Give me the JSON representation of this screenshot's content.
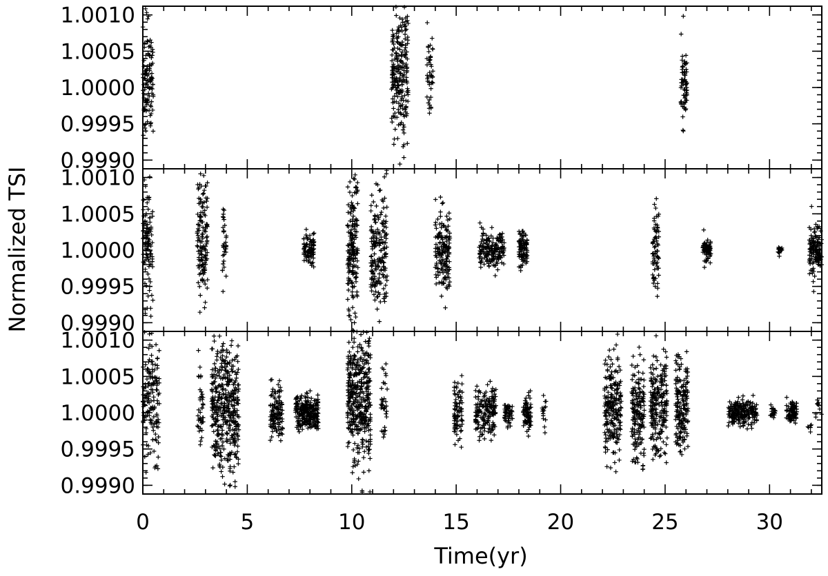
{
  "chart_data": {
    "type": "scatter",
    "marker": "plus",
    "xlabel": "Time(yr)",
    "ylabel": "Normalized TSI",
    "xlim": [
      0,
      32.5
    ],
    "ylim": [
      0.99888,
      1.00112
    ],
    "x_ticks": [
      0,
      5,
      10,
      15,
      20,
      25,
      30
    ],
    "x_tick_labels": [
      "0",
      "5",
      "10",
      "15",
      "20",
      "25",
      "30"
    ],
    "y_ticks": [
      0.999,
      0.9995,
      1.0,
      1.0005,
      1.001
    ],
    "y_tick_labels": [
      "0.9990",
      "0.9995",
      "1.0000",
      "1.0005",
      "1.0010"
    ],
    "color": "#000000",
    "panels": [
      {
        "clusters": [
          {
            "x": [
              0.0,
              0.5
            ],
            "center": 1.0001,
            "spread": 0.0009,
            "count": 110
          },
          {
            "x": [
              11.9,
              12.7
            ],
            "center": 1.0002,
            "spread": 0.0012,
            "count": 240
          },
          {
            "x": [
              13.6,
              13.9
            ],
            "center": 1.0001,
            "spread": 0.0007,
            "count": 45
          },
          {
            "x": [
              25.75,
              26.05
            ],
            "center": 1.0,
            "spread": 0.0007,
            "count": 70
          }
        ]
      },
      {
        "clusters": [
          {
            "x": [
              0.0,
              0.5
            ],
            "center": 1.0001,
            "spread": 0.0009,
            "count": 110
          },
          {
            "x": [
              2.6,
              3.1
            ],
            "center": 1.0001,
            "spread": 0.001,
            "count": 140
          },
          {
            "x": [
              3.8,
              4.0
            ],
            "center": 1.0001,
            "spread": 0.0006,
            "count": 35
          },
          {
            "x": [
              7.7,
              8.2
            ],
            "center": 1.0,
            "spread": 0.00025,
            "count": 90
          },
          {
            "x": [
              9.8,
              10.3
            ],
            "center": 1.0,
            "spread": 0.0011,
            "count": 180
          },
          {
            "x": [
              10.9,
              11.7
            ],
            "center": 1.0,
            "spread": 0.001,
            "count": 190
          },
          {
            "x": [
              14.0,
              14.7
            ],
            "center": 1.0,
            "spread": 0.0007,
            "count": 170
          },
          {
            "x": [
              16.1,
              17.3
            ],
            "center": 1.0,
            "spread": 0.0003,
            "count": 170
          },
          {
            "x": [
              18.0,
              18.4
            ],
            "center": 1.0,
            "spread": 0.0003,
            "count": 90
          },
          {
            "x": [
              24.4,
              24.7
            ],
            "center": 1.0,
            "spread": 0.0006,
            "count": 70
          },
          {
            "x": [
              26.8,
              27.2
            ],
            "center": 1.0,
            "spread": 0.0002,
            "count": 70
          },
          {
            "x": [
              30.4,
              30.6
            ],
            "center": 1.0,
            "spread": 0.0001,
            "count": 15
          },
          {
            "x": [
              31.9,
              32.5
            ],
            "center": 1.0,
            "spread": 0.0004,
            "count": 140
          }
        ]
      },
      {
        "clusters": [
          {
            "x": [
              0.0,
              0.8
            ],
            "center": 1.0001,
            "spread": 0.001,
            "count": 150
          },
          {
            "x": [
              2.6,
              2.9
            ],
            "center": 1.0001,
            "spread": 0.0007,
            "count": 40
          },
          {
            "x": [
              3.3,
              4.6
            ],
            "center": 1.0001,
            "spread": 0.0011,
            "count": 420
          },
          {
            "x": [
              6.1,
              6.7
            ],
            "center": 1.0,
            "spread": 0.0004,
            "count": 120
          },
          {
            "x": [
              7.3,
              8.4
            ],
            "center": 1.0,
            "spread": 0.00025,
            "count": 260
          },
          {
            "x": [
              9.8,
              10.9
            ],
            "center": 1.0002,
            "spread": 0.0011,
            "count": 420
          },
          {
            "x": [
              11.4,
              11.7
            ],
            "center": 1.0001,
            "spread": 0.0007,
            "count": 35
          },
          {
            "x": [
              14.9,
              15.3
            ],
            "center": 1.0,
            "spread": 0.0005,
            "count": 80
          },
          {
            "x": [
              15.9,
              16.9
            ],
            "center": 1.0,
            "spread": 0.0004,
            "count": 170
          },
          {
            "x": [
              17.3,
              17.7
            ],
            "center": 1.0,
            "spread": 0.0002,
            "count": 50
          },
          {
            "x": [
              18.2,
              18.6
            ],
            "center": 1.0,
            "spread": 0.0003,
            "count": 80
          },
          {
            "x": [
              19.1,
              19.3
            ],
            "center": 1.0,
            "spread": 0.0003,
            "count": 15
          },
          {
            "x": [
              22.1,
              22.9
            ],
            "center": 1.0001,
            "spread": 0.0008,
            "count": 220
          },
          {
            "x": [
              23.4,
              24.0
            ],
            "center": 1.0,
            "spread": 0.0008,
            "count": 170
          },
          {
            "x": [
              24.3,
              25.1
            ],
            "center": 1.0001,
            "spread": 0.0008,
            "count": 220
          },
          {
            "x": [
              25.5,
              26.1
            ],
            "center": 1.0001,
            "spread": 0.0008,
            "count": 170
          },
          {
            "x": [
              28.0,
              29.4
            ],
            "center": 1.0,
            "spread": 0.0002,
            "count": 200
          },
          {
            "x": [
              30.0,
              30.3
            ],
            "center": 1.0,
            "spread": 0.0001,
            "count": 20
          },
          {
            "x": [
              30.8,
              31.3
            ],
            "center": 1.0,
            "spread": 0.0002,
            "count": 80
          },
          {
            "x": [
              31.8,
              32.0
            ],
            "center": 0.9998,
            "spread": 0.0001,
            "count": 6
          },
          {
            "x": [
              32.2,
              32.5
            ],
            "center": 1.0001,
            "spread": 0.0002,
            "count": 10
          }
        ]
      }
    ]
  }
}
